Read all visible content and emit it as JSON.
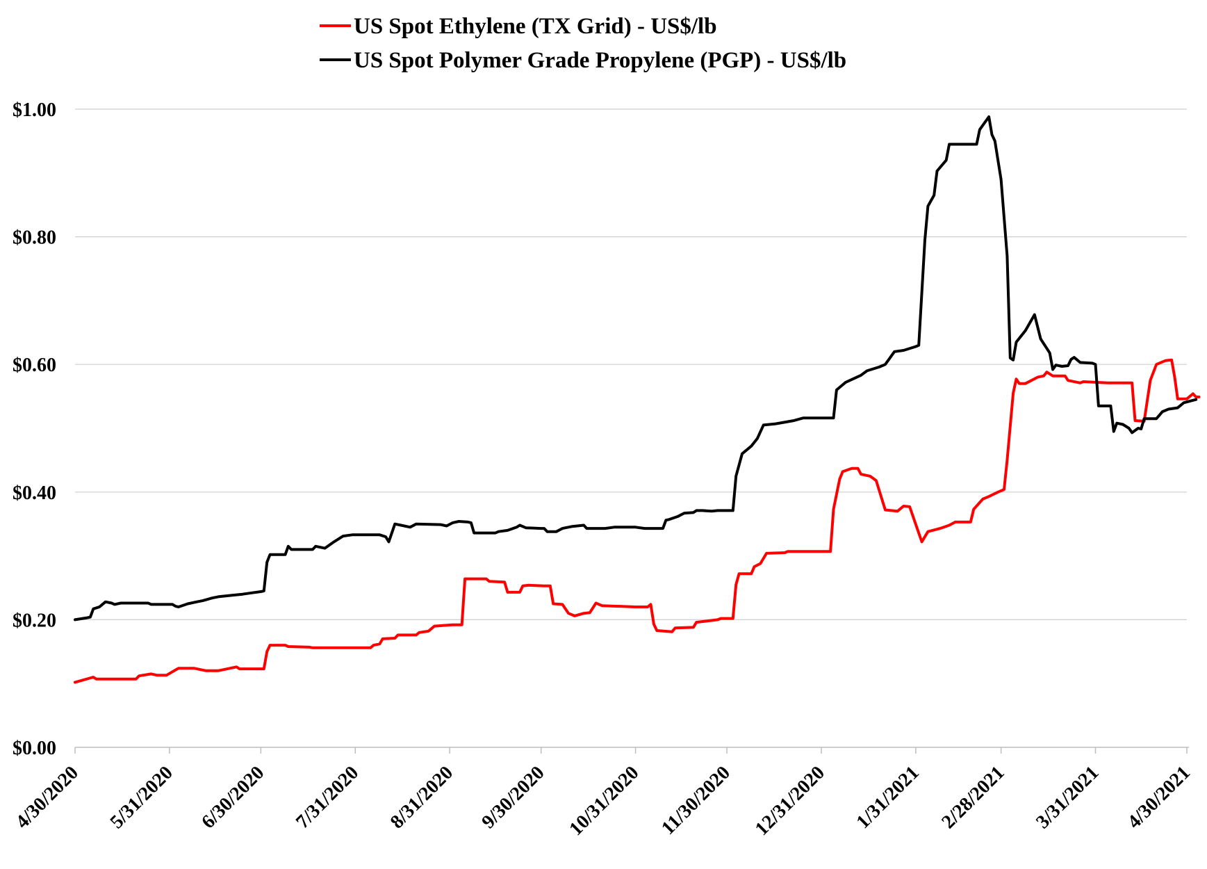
{
  "chart_data": {
    "type": "line",
    "title": "",
    "xlabel": "",
    "ylabel": "",
    "ylim": [
      0,
      1.0
    ],
    "y_ticks": [
      "$0.00",
      "$0.20",
      "$0.40",
      "$0.60",
      "$0.80",
      "$1.00"
    ],
    "y_tick_values": [
      0,
      0.2,
      0.4,
      0.6,
      0.8,
      1.0
    ],
    "x_range": [
      "2020-04-30",
      "2021-04-30"
    ],
    "x_ticks": [
      "4/30/2020",
      "5/31/2020",
      "6/30/2020",
      "7/31/2020",
      "8/31/2020",
      "9/30/2020",
      "10/31/2020",
      "11/30/2020",
      "12/31/2020",
      "1/31/2021",
      "2/28/2021",
      "3/31/2021",
      "4/30/2021"
    ],
    "x_tick_dates": [
      "2020-04-30",
      "2020-05-31",
      "2020-06-30",
      "2020-07-31",
      "2020-08-31",
      "2020-09-30",
      "2020-10-31",
      "2020-11-30",
      "2020-12-31",
      "2021-01-31",
      "2021-02-28",
      "2021-03-31",
      "2021-04-30"
    ],
    "grid": true,
    "legend_position": "top-center",
    "series": [
      {
        "name": "US Spot Ethylene (TX Grid) - US$/lb",
        "color": "#ff0000",
        "points": [
          [
            "2020-04-30",
            0.102
          ],
          [
            "2020-05-06",
            0.11
          ],
          [
            "2020-05-07",
            0.107
          ],
          [
            "2020-05-20",
            0.107
          ],
          [
            "2020-05-21",
            0.112
          ],
          [
            "2020-05-25",
            0.115
          ],
          [
            "2020-05-27",
            0.113
          ],
          [
            "2020-05-29",
            0.113
          ],
          [
            "2020-05-30",
            0.113
          ],
          [
            "2020-06-03",
            0.124
          ],
          [
            "2020-06-08",
            0.124
          ],
          [
            "2020-06-12",
            0.12
          ],
          [
            "2020-06-16",
            0.12
          ],
          [
            "2020-06-22",
            0.126
          ],
          [
            "2020-06-23",
            0.123
          ],
          [
            "2020-07-01",
            0.123
          ],
          [
            "2020-07-02",
            0.15
          ],
          [
            "2020-07-03",
            0.16
          ],
          [
            "2020-07-08",
            0.16
          ],
          [
            "2020-07-09",
            0.158
          ],
          [
            "2020-07-16",
            0.157
          ],
          [
            "2020-07-17",
            0.156
          ],
          [
            "2020-08-05",
            0.156
          ],
          [
            "2020-08-06",
            0.16
          ],
          [
            "2020-08-08",
            0.162
          ],
          [
            "2020-08-09",
            0.17
          ],
          [
            "2020-08-13",
            0.171
          ],
          [
            "2020-08-14",
            0.176
          ],
          [
            "2020-08-20",
            0.176
          ],
          [
            "2020-08-21",
            0.18
          ],
          [
            "2020-08-24",
            0.182
          ],
          [
            "2020-08-26",
            0.19
          ],
          [
            "2020-09-01",
            0.192
          ],
          [
            "2020-09-04",
            0.192
          ],
          [
            "2020-09-05",
            0.264
          ],
          [
            "2020-09-12",
            0.264
          ],
          [
            "2020-09-13",
            0.26
          ],
          [
            "2020-09-18",
            0.259
          ],
          [
            "2020-09-19",
            0.243
          ],
          [
            "2020-09-23",
            0.243
          ],
          [
            "2020-09-24",
            0.253
          ],
          [
            "2020-09-26",
            0.254
          ],
          [
            "2020-10-01",
            0.253
          ],
          [
            "2020-10-03",
            0.253
          ],
          [
            "2020-10-04",
            0.225
          ],
          [
            "2020-10-07",
            0.224
          ],
          [
            "2020-10-09",
            0.21
          ],
          [
            "2020-10-11",
            0.206
          ],
          [
            "2020-10-14",
            0.21
          ],
          [
            "2020-10-16",
            0.211
          ],
          [
            "2020-10-18",
            0.226
          ],
          [
            "2020-10-20",
            0.222
          ],
          [
            "2020-10-31",
            0.22
          ],
          [
            "2020-11-04",
            0.22
          ],
          [
            "2020-11-05",
            0.224
          ],
          [
            "2020-11-06",
            0.193
          ],
          [
            "2020-11-07",
            0.183
          ],
          [
            "2020-11-12",
            0.181
          ],
          [
            "2020-11-13",
            0.187
          ],
          [
            "2020-11-19",
            0.188
          ],
          [
            "2020-11-20",
            0.196
          ],
          [
            "2020-11-27",
            0.2
          ],
          [
            "2020-11-28",
            0.202
          ],
          [
            "2020-12-02",
            0.202
          ],
          [
            "2020-12-03",
            0.255
          ],
          [
            "2020-12-04",
            0.272
          ],
          [
            "2020-12-08",
            0.272
          ],
          [
            "2020-12-09",
            0.283
          ],
          [
            "2020-12-11",
            0.288
          ],
          [
            "2020-12-13",
            0.304
          ],
          [
            "2020-12-19",
            0.305
          ],
          [
            "2020-12-20",
            0.307
          ],
          [
            "2021-01-03",
            0.307
          ],
          [
            "2021-01-04",
            0.373
          ],
          [
            "2021-01-06",
            0.42
          ],
          [
            "2021-01-07",
            0.432
          ],
          [
            "2021-01-10",
            0.437
          ],
          [
            "2021-01-12",
            0.437
          ],
          [
            "2021-01-13",
            0.428
          ],
          [
            "2021-01-16",
            0.425
          ],
          [
            "2021-01-18",
            0.418
          ],
          [
            "2021-01-21",
            0.372
          ],
          [
            "2021-01-25",
            0.37
          ],
          [
            "2021-01-27",
            0.378
          ],
          [
            "2021-01-29",
            0.377
          ],
          [
            "2021-02-02",
            0.322
          ],
          [
            "2021-02-04",
            0.338
          ],
          [
            "2021-02-08",
            0.343
          ],
          [
            "2021-02-11",
            0.348
          ],
          [
            "2021-02-13",
            0.353
          ],
          [
            "2021-02-18",
            0.353
          ],
          [
            "2021-02-19",
            0.373
          ],
          [
            "2021-02-22",
            0.389
          ],
          [
            "2021-02-24",
            0.393
          ],
          [
            "2021-02-27",
            0.4
          ],
          [
            "2021-03-01",
            0.404
          ],
          [
            "2021-03-02",
            0.45
          ],
          [
            "2021-03-04",
            0.555
          ],
          [
            "2021-03-05",
            0.577
          ],
          [
            "2021-03-06",
            0.57
          ],
          [
            "2021-03-08",
            0.57
          ],
          [
            "2021-03-12",
            0.58
          ],
          [
            "2021-03-14",
            0.582
          ],
          [
            "2021-03-15",
            0.588
          ],
          [
            "2021-03-17",
            0.582
          ],
          [
            "2021-03-21",
            0.582
          ],
          [
            "2021-03-22",
            0.575
          ],
          [
            "2021-03-26",
            0.571
          ],
          [
            "2021-03-27",
            0.573
          ],
          [
            "2021-04-04",
            0.571
          ],
          [
            "2021-04-12",
            0.571
          ],
          [
            "2021-04-13",
            0.512
          ],
          [
            "2021-04-16",
            0.511
          ],
          [
            "2021-04-18",
            0.575
          ],
          [
            "2021-04-20",
            0.6
          ],
          [
            "2021-04-23",
            0.606
          ],
          [
            "2021-04-25",
            0.607
          ],
          [
            "2021-04-26",
            0.58
          ],
          [
            "2021-04-27",
            0.546
          ],
          [
            "2021-04-30",
            0.546
          ],
          [
            "2021-05-02",
            0.554
          ],
          [
            "2021-05-03",
            0.549
          ],
          [
            "2021-05-04",
            0.549
          ]
        ]
      },
      {
        "name": "US Spot Polymer Grade Propylene (PGP) - US$/lb",
        "color": "#000000",
        "points": [
          [
            "2020-04-30",
            0.2
          ],
          [
            "2020-05-04",
            0.203
          ],
          [
            "2020-05-05",
            0.204
          ],
          [
            "2020-05-06",
            0.217
          ],
          [
            "2020-05-08",
            0.22
          ],
          [
            "2020-05-10",
            0.228
          ],
          [
            "2020-05-12",
            0.226
          ],
          [
            "2020-05-13",
            0.224
          ],
          [
            "2020-05-15",
            0.226
          ],
          [
            "2020-05-24",
            0.226
          ],
          [
            "2020-05-25",
            0.224
          ],
          [
            "2020-06-01",
            0.224
          ],
          [
            "2020-06-02",
            0.221
          ],
          [
            "2020-06-03",
            0.22
          ],
          [
            "2020-06-06",
            0.225
          ],
          [
            "2020-06-09",
            0.228
          ],
          [
            "2020-06-11",
            0.23
          ],
          [
            "2020-06-14",
            0.234
          ],
          [
            "2020-06-16",
            0.236
          ],
          [
            "2020-06-20",
            0.238
          ],
          [
            "2020-06-24",
            0.24
          ],
          [
            "2020-06-27",
            0.242
          ],
          [
            "2020-06-30",
            0.244
          ],
          [
            "2020-07-01",
            0.245
          ],
          [
            "2020-07-02",
            0.29
          ],
          [
            "2020-07-03",
            0.302
          ],
          [
            "2020-07-08",
            0.302
          ],
          [
            "2020-07-09",
            0.315
          ],
          [
            "2020-07-10",
            0.31
          ],
          [
            "2020-07-17",
            0.31
          ],
          [
            "2020-07-18",
            0.315
          ],
          [
            "2020-07-21",
            0.312
          ],
          [
            "2020-07-24",
            0.322
          ],
          [
            "2020-07-27",
            0.331
          ],
          [
            "2020-07-30",
            0.333
          ],
          [
            "2020-08-08",
            0.333
          ],
          [
            "2020-08-10",
            0.33
          ],
          [
            "2020-08-11",
            0.322
          ],
          [
            "2020-08-13",
            0.35
          ],
          [
            "2020-08-15",
            0.348
          ],
          [
            "2020-08-18",
            0.345
          ],
          [
            "2020-08-20",
            0.35
          ],
          [
            "2020-08-28",
            0.349
          ],
          [
            "2020-08-30",
            0.347
          ],
          [
            "2020-09-01",
            0.352
          ],
          [
            "2020-09-03",
            0.354
          ],
          [
            "2020-09-06",
            0.353
          ],
          [
            "2020-09-07",
            0.352
          ],
          [
            "2020-09-08",
            0.336
          ],
          [
            "2020-09-15",
            0.336
          ],
          [
            "2020-09-16",
            0.338
          ],
          [
            "2020-09-19",
            0.34
          ],
          [
            "2020-09-22",
            0.345
          ],
          [
            "2020-09-23",
            0.348
          ],
          [
            "2020-09-25",
            0.344
          ],
          [
            "2020-09-30",
            0.343
          ],
          [
            "2020-10-01",
            0.343
          ],
          [
            "2020-10-02",
            0.338
          ],
          [
            "2020-10-05",
            0.338
          ],
          [
            "2020-10-07",
            0.343
          ],
          [
            "2020-10-10",
            0.346
          ],
          [
            "2020-10-14",
            0.348
          ],
          [
            "2020-10-15",
            0.343
          ],
          [
            "2020-10-21",
            0.343
          ],
          [
            "2020-10-24",
            0.345
          ],
          [
            "2020-10-31",
            0.345
          ],
          [
            "2020-11-03",
            0.343
          ],
          [
            "2020-11-09",
            0.343
          ],
          [
            "2020-11-10",
            0.356
          ],
          [
            "2020-11-11",
            0.357
          ],
          [
            "2020-11-14",
            0.362
          ],
          [
            "2020-11-16",
            0.367
          ],
          [
            "2020-11-19",
            0.368
          ],
          [
            "2020-11-20",
            0.371
          ],
          [
            "2020-11-22",
            0.371
          ],
          [
            "2020-11-25",
            0.37
          ],
          [
            "2020-11-27",
            0.371
          ],
          [
            "2020-12-02",
            0.371
          ],
          [
            "2020-12-03",
            0.425
          ],
          [
            "2020-12-05",
            0.46
          ],
          [
            "2020-12-08",
            0.472
          ],
          [
            "2020-12-10",
            0.484
          ],
          [
            "2020-12-12",
            0.505
          ],
          [
            "2020-12-16",
            0.507
          ],
          [
            "2020-12-22",
            0.512
          ],
          [
            "2020-12-25",
            0.516
          ],
          [
            "2021-01-04",
            0.516
          ],
          [
            "2021-01-05",
            0.56
          ],
          [
            "2021-01-08",
            0.572
          ],
          [
            "2021-01-13",
            0.583
          ],
          [
            "2021-01-15",
            0.59
          ],
          [
            "2021-01-19",
            0.596
          ],
          [
            "2021-01-21",
            0.6
          ],
          [
            "2021-01-24",
            0.62
          ],
          [
            "2021-01-27",
            0.622
          ],
          [
            "2021-01-31",
            0.628
          ],
          [
            "2021-02-01",
            0.63
          ],
          [
            "2021-02-03",
            0.795
          ],
          [
            "2021-02-04",
            0.848
          ],
          [
            "2021-02-06",
            0.865
          ],
          [
            "2021-02-07",
            0.903
          ],
          [
            "2021-02-10",
            0.92
          ],
          [
            "2021-02-11",
            0.945
          ],
          [
            "2021-02-20",
            0.945
          ],
          [
            "2021-02-21",
            0.968
          ],
          [
            "2021-02-24",
            0.988
          ],
          [
            "2021-02-25",
            0.96
          ],
          [
            "2021-02-26",
            0.95
          ],
          [
            "2021-02-28",
            0.89
          ],
          [
            "2021-03-01",
            0.83
          ],
          [
            "2021-03-02",
            0.77
          ],
          [
            "2021-03-03",
            0.61
          ],
          [
            "2021-03-04",
            0.607
          ],
          [
            "2021-03-05",
            0.635
          ],
          [
            "2021-03-08",
            0.653
          ],
          [
            "2021-03-11",
            0.678
          ],
          [
            "2021-03-13",
            0.64
          ],
          [
            "2021-03-16",
            0.618
          ],
          [
            "2021-03-17",
            0.592
          ],
          [
            "2021-03-18",
            0.599
          ],
          [
            "2021-03-20",
            0.597
          ],
          [
            "2021-03-22",
            0.598
          ],
          [
            "2021-03-23",
            0.608
          ],
          [
            "2021-03-24",
            0.611
          ],
          [
            "2021-03-26",
            0.603
          ],
          [
            "2021-03-30",
            0.602
          ],
          [
            "2021-03-31",
            0.6
          ],
          [
            "2021-04-01",
            0.535
          ],
          [
            "2021-04-05",
            0.535
          ],
          [
            "2021-04-06",
            0.495
          ],
          [
            "2021-04-07",
            0.508
          ],
          [
            "2021-04-09",
            0.506
          ],
          [
            "2021-04-11",
            0.5
          ],
          [
            "2021-04-12",
            0.493
          ],
          [
            "2021-04-14",
            0.5
          ],
          [
            "2021-04-15",
            0.499
          ],
          [
            "2021-04-16",
            0.515
          ],
          [
            "2021-04-20",
            0.515
          ],
          [
            "2021-04-22",
            0.526
          ],
          [
            "2021-04-24",
            0.53
          ],
          [
            "2021-04-27",
            0.532
          ],
          [
            "2021-04-29",
            0.54
          ],
          [
            "2021-05-03",
            0.545
          ]
        ]
      }
    ]
  }
}
